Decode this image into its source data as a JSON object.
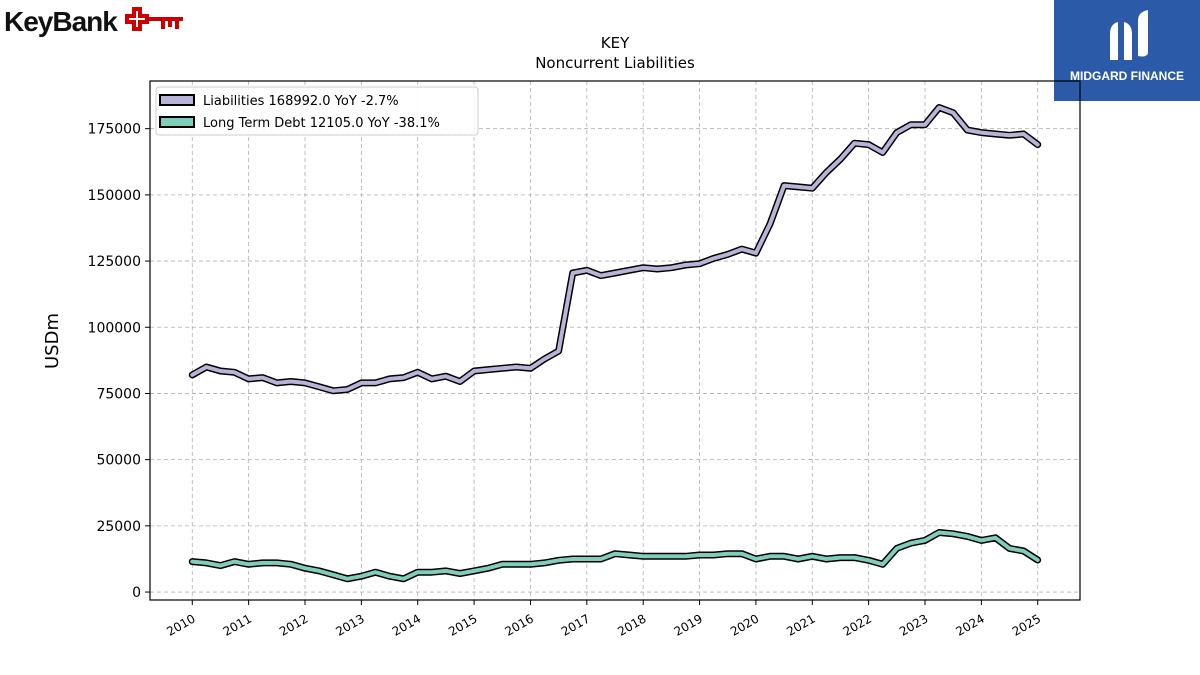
{
  "brand": {
    "name": "KeyBank"
  },
  "badge": {
    "name": "MIDGARD FINANCE"
  },
  "chart_data": {
    "type": "line",
    "title": "KEY",
    "subtitle": "Noncurrent  Liabilities",
    "ylabel": "USDm",
    "xlabel": "",
    "ylim": [
      -3000,
      193000
    ],
    "xlim": [
      2009.25,
      2025.75
    ],
    "yticks": [
      0,
      25000,
      50000,
      75000,
      100000,
      125000,
      150000,
      175000
    ],
    "ytick_labels": [
      "0",
      "25000",
      "50000",
      "75000",
      "100000",
      "125000",
      "150000",
      "175000"
    ],
    "xticks": [
      2010,
      2011,
      2012,
      2013,
      2014,
      2015,
      2016,
      2017,
      2018,
      2019,
      2020,
      2021,
      2022,
      2023,
      2024,
      2025
    ],
    "xtick_labels": [
      "2010",
      "2011",
      "2012",
      "2013",
      "2014",
      "2015",
      "2016",
      "2017",
      "2018",
      "2019",
      "2020",
      "2021",
      "2022",
      "2023",
      "2024",
      "2025"
    ],
    "grid": true,
    "legend_position": "top-left",
    "x": [
      2010.0,
      2010.25,
      2010.5,
      2010.75,
      2011.0,
      2011.25,
      2011.5,
      2011.75,
      2012.0,
      2012.25,
      2012.5,
      2012.75,
      2013.0,
      2013.25,
      2013.5,
      2013.75,
      2014.0,
      2014.25,
      2014.5,
      2014.75,
      2015.0,
      2015.25,
      2015.5,
      2015.75,
      2016.0,
      2016.25,
      2016.5,
      2016.75,
      2017.0,
      2017.25,
      2017.5,
      2017.75,
      2018.0,
      2018.25,
      2018.5,
      2018.75,
      2019.0,
      2019.25,
      2019.5,
      2019.75,
      2020.0,
      2020.25,
      2020.5,
      2020.75,
      2021.0,
      2021.25,
      2021.5,
      2021.75,
      2022.0,
      2022.25,
      2022.5,
      2022.75,
      2023.0,
      2023.25,
      2023.5,
      2023.75,
      2024.0,
      2024.25,
      2024.5,
      2024.75,
      2025.0
    ],
    "series": [
      {
        "name": "Liabilities  168992.0 YoY -2.7%",
        "color": "#b8b4d8",
        "values": [
          82000,
          85000,
          83500,
          83000,
          80500,
          81000,
          79000,
          79500,
          79000,
          77500,
          76000,
          76500,
          79000,
          79000,
          80500,
          81000,
          83000,
          80500,
          81500,
          79500,
          83500,
          84000,
          84500,
          85000,
          84500,
          88000,
          91000,
          120500,
          121500,
          119500,
          120500,
          121500,
          122500,
          122000,
          122500,
          123500,
          124000,
          126000,
          127500,
          129500,
          128000,
          139000,
          153500,
          153000,
          152500,
          158500,
          163500,
          169500,
          169000,
          166000,
          173500,
          176500,
          176500,
          183000,
          181000,
          174500,
          173500,
          173000,
          172500,
          173000,
          168992
        ]
      },
      {
        "name": "Long Term Debt  12105.0 YoY -38.1%",
        "color": "#7fcdbb",
        "values": [
          11500,
          11000,
          10000,
          11500,
          10500,
          11000,
          11000,
          10500,
          9000,
          8000,
          6500,
          5000,
          6000,
          7500,
          6000,
          5000,
          7500,
          7500,
          8000,
          7000,
          8000,
          9000,
          10500,
          10500,
          10500,
          11000,
          12000,
          12500,
          12500,
          12500,
          14500,
          14000,
          13500,
          13500,
          13500,
          13500,
          14000,
          14000,
          14500,
          14500,
          12500,
          13500,
          13500,
          12500,
          13500,
          12500,
          13000,
          13000,
          12000,
          10500,
          16500,
          18500,
          19500,
          22500,
          22000,
          21000,
          19500,
          20500,
          16500,
          15500,
          12105
        ]
      }
    ]
  }
}
